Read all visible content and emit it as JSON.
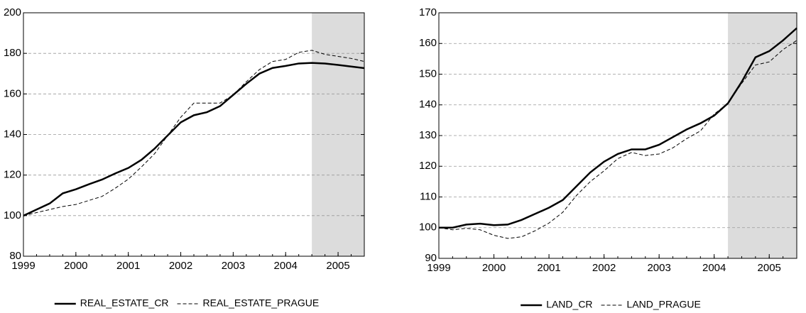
{
  "chart_data": [
    {
      "type": "line",
      "x": [
        1999,
        1999.25,
        1999.5,
        1999.75,
        2000,
        2000.25,
        2000.5,
        2000.75,
        2001,
        2001.25,
        2001.5,
        2001.75,
        2002,
        2002.25,
        2002.5,
        2002.75,
        2003,
        2003.25,
        2003.5,
        2003.75,
        2004,
        2004.25,
        2004.5,
        2004.75,
        2005,
        2005.25,
        2005.5
      ],
      "series": [
        {
          "name": "REAL_ESTATE_CR",
          "color": "#000000",
          "line_style": "solid",
          "values": [
            100,
            103,
            106,
            111,
            113,
            115.5,
            117.8,
            120.8,
            123.5,
            127.5,
            133,
            139.5,
            146,
            149.5,
            151,
            154,
            159.5,
            165,
            170,
            172.8,
            173.8,
            175,
            175.3,
            175,
            174.3,
            173.5,
            172.7
          ]
        },
        {
          "name": "REAL_ESTATE_PRAGUE",
          "color": "#000000",
          "line_style": "dashed",
          "values": [
            100,
            101.5,
            103,
            104.5,
            105.5,
            107.5,
            109.5,
            113.5,
            118,
            124,
            130.5,
            139.5,
            148.5,
            155.5,
            155.5,
            155.5,
            159.5,
            166,
            172,
            176,
            177,
            180.5,
            181.5,
            179.5,
            178.5,
            177.5,
            176
          ]
        }
      ],
      "xlim": [
        1999,
        2005.5
      ],
      "xticks": [
        1999,
        2000,
        2001,
        2002,
        2003,
        2004,
        2005
      ],
      "ylim": [
        80,
        200
      ],
      "yticks": [
        80,
        100,
        120,
        140,
        160,
        180,
        200
      ],
      "grid": true,
      "shaded_region": [
        2004.5,
        2005.5
      ],
      "legend": "bottom"
    },
    {
      "type": "line",
      "x": [
        1999,
        1999.25,
        1999.5,
        1999.75,
        2000,
        2000.25,
        2000.5,
        2000.75,
        2001,
        2001.25,
        2001.5,
        2001.75,
        2002,
        2002.25,
        2002.5,
        2002.75,
        2003,
        2003.25,
        2003.5,
        2003.75,
        2004,
        2004.25,
        2004.5,
        2004.75,
        2005,
        2005.25,
        2005.5
      ],
      "series": [
        {
          "name": "LAND_CR",
          "color": "#000000",
          "line_style": "solid",
          "values": [
            100,
            100,
            101,
            101.3,
            100.8,
            101,
            102.5,
            104.5,
            106.5,
            109,
            113.5,
            118,
            121.5,
            124,
            125.5,
            125.5,
            127,
            129.5,
            132,
            134,
            136.5,
            140.5,
            147.5,
            155.5,
            157.5,
            161,
            165
          ]
        },
        {
          "name": "LAND_PRAGUE",
          "color": "#000000",
          "line_style": "dashed",
          "values": [
            100,
            99.3,
            99.8,
            99.3,
            97.5,
            96.5,
            97,
            99,
            101.5,
            105,
            110.5,
            115,
            118.5,
            122.5,
            124.5,
            123.5,
            124,
            126,
            129,
            131.5,
            137,
            140.5,
            147,
            153,
            154,
            158,
            161
          ]
        }
      ],
      "xlim": [
        1999,
        2005.5
      ],
      "xticks": [
        1999,
        2000,
        2001,
        2002,
        2003,
        2004,
        2005
      ],
      "ylim": [
        90,
        170
      ],
      "yticks": [
        90,
        100,
        110,
        120,
        130,
        140,
        150,
        160,
        170
      ],
      "grid": true,
      "shaded_region": [
        2004.25,
        2005.5
      ],
      "legend": "bottom"
    }
  ]
}
